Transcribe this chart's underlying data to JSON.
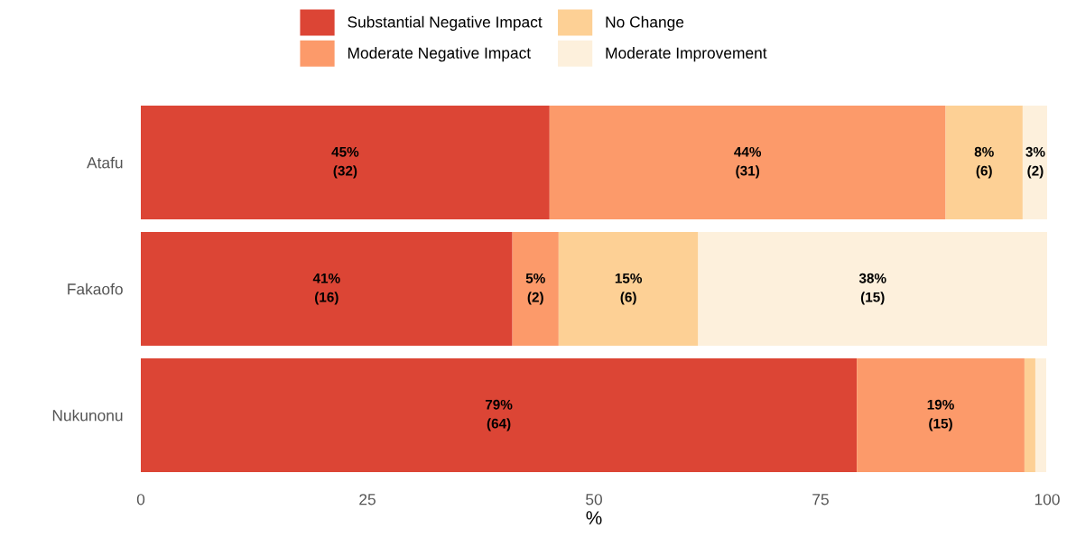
{
  "chart_data": {
    "type": "bar",
    "orientation": "horizontal",
    "stacked": true,
    "xlabel": "%",
    "categories": [
      "Atafu",
      "Fakaofo",
      "Nukunonu"
    ],
    "series": [
      {
        "name": "Substantial Negative Impact",
        "color": "#dc4535",
        "values": [
          45.1,
          41.0,
          79.0
        ],
        "value_labels": [
          "45%\n(32)",
          "41%\n(16)",
          "79%\n(64)"
        ]
      },
      {
        "name": "Moderate Negative Impact",
        "color": "#fc9a6a",
        "values": [
          43.7,
          5.1,
          18.5
        ],
        "value_labels": [
          "44%\n(31)",
          "5%\n(2)",
          "19%\n(15)"
        ]
      },
      {
        "name": "No Change",
        "color": "#fdd095",
        "values": [
          8.5,
          15.4,
          1.2
        ],
        "value_labels": [
          "8%\n(6)",
          "15%\n(6)",
          null
        ]
      },
      {
        "name": "Moderate Improvement",
        "color": "#fdf0dc",
        "values": [
          2.8,
          38.5,
          1.2
        ],
        "value_labels": [
          "3%\n(2)",
          "38%\n(15)",
          null
        ]
      }
    ],
    "xlim": [
      0,
      100
    ],
    "xticks": [
      0,
      25,
      50,
      75,
      100
    ],
    "grid": false,
    "legend": "top"
  }
}
